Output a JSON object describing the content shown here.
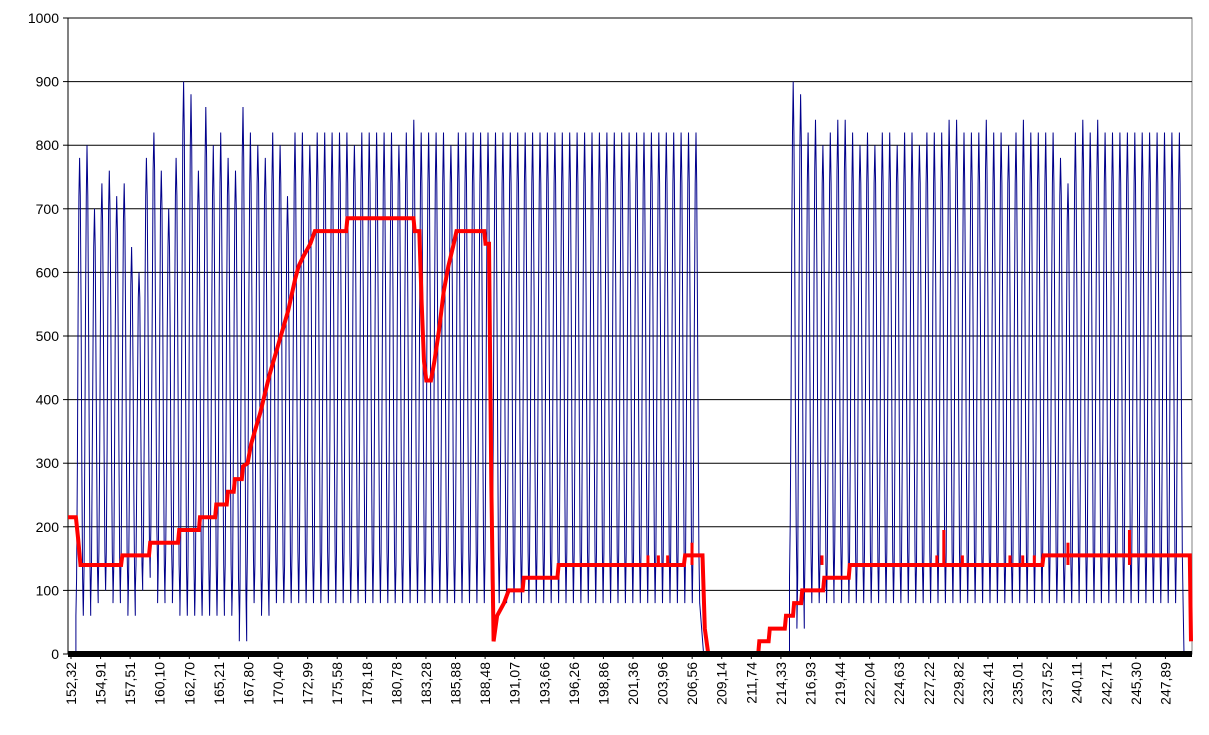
{
  "chart_data": {
    "type": "line",
    "title": "",
    "xlabel": "",
    "ylabel": "",
    "ylim": [
      0,
      1000
    ],
    "xlim": [
      152.32,
      249.19
    ],
    "y_ticks": [
      "0",
      "100",
      "200",
      "300",
      "400",
      "500",
      "600",
      "700",
      "800",
      "900",
      "1000"
    ],
    "x_tick_labels": [
      "152,32",
      "154,91",
      "157,51",
      "160,10",
      "162,70",
      "165,21",
      "167,80",
      "170,40",
      "172,99",
      "175,58",
      "178,18",
      "180,78",
      "183,28",
      "185,88",
      "188,48",
      "191,07",
      "193,66",
      "196,26",
      "198,86",
      "201,36",
      "203,96",
      "206,56",
      "209,14",
      "211,74",
      "214,33",
      "216,93",
      "219,44",
      "222,04",
      "224,63",
      "227,22",
      "229,82",
      "232,41",
      "235,01",
      "237,52",
      "240,11",
      "242,71",
      "245,30",
      "247,89"
    ],
    "grid": "horizontal",
    "legend": "none",
    "colors": {
      "series_fast": "#00008b",
      "series_step": "#ff0000",
      "baseline": "#000000",
      "grid": "#000000"
    },
    "oscillation_segments": [
      {
        "x_start": 153.0,
        "x_end": 207.1,
        "cycle": 0.64,
        "peaks": [
          780,
          800,
          700,
          740,
          760,
          720,
          740,
          640,
          600,
          780,
          820,
          760,
          700,
          780,
          900,
          880,
          760,
          860,
          800,
          820,
          780,
          760,
          860,
          820,
          800,
          780,
          820,
          800,
          720,
          820,
          820,
          800,
          820,
          820,
          820,
          820,
          820,
          800,
          820,
          820,
          820,
          820,
          820,
          800,
          820,
          840,
          820,
          820,
          820,
          820,
          800,
          820,
          820,
          820,
          820,
          820,
          820,
          820,
          820,
          820,
          820,
          820,
          820,
          820,
          820,
          820,
          820,
          820,
          820,
          820,
          820,
          820,
          820,
          820,
          820,
          820,
          820,
          820,
          820,
          820,
          820,
          820,
          820,
          820
        ],
        "troughs": [
          60,
          60,
          80,
          100,
          100,
          80,
          100,
          60,
          100,
          120,
          140,
          80,
          100,
          80,
          60,
          60,
          60,
          60,
          60,
          60,
          80,
          60,
          20,
          80,
          80,
          60,
          80,
          80,
          80,
          80,
          80,
          80,
          80,
          80,
          80,
          80,
          80,
          80,
          80,
          80,
          80,
          80,
          80,
          80,
          80,
          80,
          80,
          80,
          80,
          80,
          80,
          80,
          80,
          80,
          80,
          80,
          80,
          80,
          80,
          80,
          80,
          80,
          80,
          80,
          80,
          80,
          80,
          80,
          80,
          80,
          80,
          80,
          80,
          80,
          80,
          80,
          80,
          80,
          80,
          80,
          80,
          80,
          80,
          80
        ]
      },
      {
        "x_start": 214.5,
        "x_end": 248.5,
        "cycle": 0.64,
        "peaks": [
          900,
          880,
          820,
          840,
          800,
          820,
          840,
          840,
          820,
          800,
          820,
          800,
          820,
          820,
          800,
          820,
          820,
          800,
          820,
          820,
          820,
          840,
          840,
          820,
          820,
          820,
          840,
          820,
          820,
          800,
          820,
          840,
          820,
          820,
          820,
          820,
          780,
          740,
          820,
          840,
          820,
          840,
          820,
          820,
          820,
          820,
          820,
          820,
          820,
          820,
          820,
          820,
          820,
          820
        ],
        "troughs": [
          120,
          40,
          80,
          80,
          80,
          80,
          100,
          80,
          80,
          80,
          80,
          80,
          80,
          80,
          80,
          80,
          80,
          80,
          80,
          80,
          80,
          80,
          80,
          80,
          80,
          80,
          80,
          80,
          80,
          80,
          80,
          80,
          80,
          80,
          80,
          80,
          80,
          80,
          80,
          80,
          80,
          80,
          80,
          80,
          80,
          80,
          80,
          80,
          80,
          80,
          80,
          80,
          80,
          80
        ]
      }
    ],
    "step_series": [
      [
        152.32,
        215
      ],
      [
        153.0,
        215
      ],
      [
        153.2,
        180
      ],
      [
        153.4,
        140
      ],
      [
        156.9,
        140
      ],
      [
        157.0,
        155
      ],
      [
        159.3,
        155
      ],
      [
        159.4,
        175
      ],
      [
        161.8,
        175
      ],
      [
        161.9,
        195
      ],
      [
        163.6,
        195
      ],
      [
        163.7,
        215
      ],
      [
        165.0,
        215
      ],
      [
        165.1,
        235
      ],
      [
        166.0,
        235
      ],
      [
        166.1,
        255
      ],
      [
        166.6,
        255
      ],
      [
        166.7,
        275
      ],
      [
        167.3,
        275
      ],
      [
        167.4,
        295
      ],
      [
        167.8,
        300
      ],
      [
        168.1,
        330
      ],
      [
        168.5,
        355
      ],
      [
        168.9,
        380
      ],
      [
        169.3,
        410
      ],
      [
        169.7,
        440
      ],
      [
        170.1,
        465
      ],
      [
        170.5,
        490
      ],
      [
        170.9,
        515
      ],
      [
        171.3,
        540
      ],
      [
        171.6,
        565
      ],
      [
        171.9,
        590
      ],
      [
        172.2,
        610
      ],
      [
        172.6,
        625
      ],
      [
        173.2,
        645
      ],
      [
        173.6,
        665
      ],
      [
        176.3,
        665
      ],
      [
        176.4,
        685
      ],
      [
        182.1,
        685
      ],
      [
        182.2,
        665
      ],
      [
        182.6,
        665
      ],
      [
        182.8,
        550
      ],
      [
        183.0,
        460
      ],
      [
        183.2,
        430
      ],
      [
        183.6,
        430
      ],
      [
        183.9,
        460
      ],
      [
        184.3,
        510
      ],
      [
        184.7,
        570
      ],
      [
        185.1,
        610
      ],
      [
        185.5,
        640
      ],
      [
        185.8,
        665
      ],
      [
        188.2,
        665
      ],
      [
        188.3,
        645
      ],
      [
        188.6,
        645
      ],
      [
        188.8,
        270
      ],
      [
        189.0,
        20
      ],
      [
        189.3,
        60
      ],
      [
        189.9,
        80
      ],
      [
        190.3,
        100
      ],
      [
        191.5,
        100
      ],
      [
        191.6,
        120
      ],
      [
        194.5,
        120
      ],
      [
        194.6,
        140
      ],
      [
        205.4,
        140
      ],
      [
        205.5,
        155
      ],
      [
        207.0,
        155
      ],
      [
        207.2,
        40
      ],
      [
        207.5,
        0
      ],
      [
        211.8,
        0
      ],
      [
        211.9,
        20
      ],
      [
        212.7,
        20
      ],
      [
        212.8,
        40
      ],
      [
        214.1,
        40
      ],
      [
        214.2,
        60
      ],
      [
        214.8,
        60
      ],
      [
        214.9,
        80
      ],
      [
        215.5,
        80
      ],
      [
        215.6,
        100
      ],
      [
        217.4,
        100
      ],
      [
        217.5,
        120
      ],
      [
        219.6,
        120
      ],
      [
        219.7,
        140
      ],
      [
        236.3,
        140
      ],
      [
        236.4,
        155
      ],
      [
        249.0,
        155
      ],
      [
        249.1,
        20
      ]
    ],
    "step_spikes": [
      [
        202.3,
        155
      ],
      [
        203.2,
        155
      ],
      [
        204.0,
        155
      ],
      [
        206.1,
        175
      ],
      [
        217.3,
        155
      ],
      [
        227.2,
        155
      ],
      [
        227.8,
        195
      ],
      [
        229.4,
        155
      ],
      [
        233.5,
        155
      ],
      [
        234.6,
        155
      ],
      [
        235.6,
        155
      ],
      [
        238.5,
        175
      ],
      [
        243.8,
        195
      ]
    ]
  }
}
